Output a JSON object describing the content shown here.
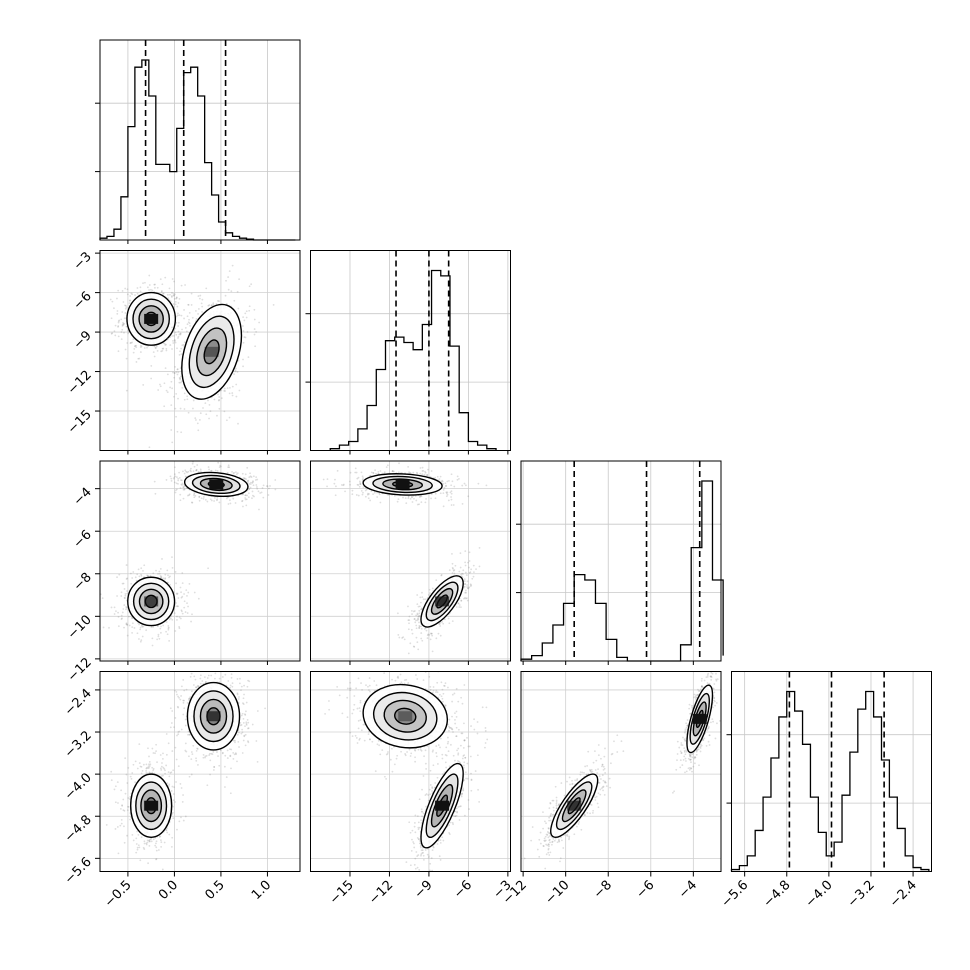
{
  "chart_data": {
    "type": "corner",
    "grid": true,
    "parameters": [
      {
        "axis_range": [
          -0.8,
          1.35
        ],
        "tick_labels": [
          "−0.5",
          "0.0",
          "0.5",
          "1.0"
        ],
        "tick_values": [
          -0.5,
          0.0,
          0.5,
          1.0
        ],
        "quantiles": [
          -0.31,
          0.1,
          0.55
        ],
        "histogram": {
          "bin_edges": [
            -0.8,
            -0.725,
            -0.65,
            -0.575,
            -0.5,
            -0.425,
            -0.35,
            -0.275,
            -0.2,
            -0.125,
            -0.05,
            0.025,
            0.1,
            0.175,
            0.25,
            0.325,
            0.4,
            0.475,
            0.55,
            0.625,
            0.7,
            0.775,
            0.85,
            0.925,
            1.0,
            1.075,
            1.15,
            1.225,
            1.3
          ],
          "counts": [
            0.01,
            0.02,
            0.06,
            0.24,
            0.63,
            0.96,
            1.0,
            0.8,
            0.42,
            0.42,
            0.38,
            0.62,
            0.93,
            0.96,
            0.8,
            0.43,
            0.25,
            0.1,
            0.04,
            0.02,
            0.01,
            0.005,
            0.0,
            0.0,
            0.0,
            0.0,
            0.0,
            0.0
          ]
        }
      },
      {
        "axis_range": [
          -18.0,
          -2.8
        ],
        "tick_labels": [
          "−15",
          "−12",
          "−9",
          "−6",
          "−3"
        ],
        "tick_values": [
          -15,
          -12,
          -9,
          -6,
          -3
        ],
        "quantiles": [
          -11.5,
          -9.0,
          -7.5
        ],
        "histogram": {
          "bin_edges": [
            -16.5,
            -15.8,
            -15.1,
            -14.4,
            -13.7,
            -13.0,
            -12.3,
            -11.6,
            -10.9,
            -10.2,
            -9.5,
            -8.8,
            -8.1,
            -7.4,
            -6.7,
            -6.0,
            -5.3,
            -4.6,
            -3.9
          ],
          "counts": [
            0.01,
            0.03,
            0.05,
            0.12,
            0.25,
            0.45,
            0.61,
            0.63,
            0.6,
            0.56,
            0.7,
            1.0,
            0.97,
            0.58,
            0.21,
            0.05,
            0.03,
            0.01
          ]
        }
      },
      {
        "axis_range": [
          -12.1,
          -2.7
        ],
        "tick_labels": [
          "−12",
          "−10",
          "−8",
          "−6",
          "−4"
        ],
        "tick_values": [
          -12,
          -10,
          -8,
          -6,
          -4
        ],
        "quantiles": [
          -9.6,
          -6.2,
          -3.7
        ],
        "histogram": {
          "bin_edges": [
            -12.1,
            -11.6,
            -11.1,
            -10.6,
            -10.1,
            -9.6,
            -9.1,
            -8.6,
            -8.1,
            -7.6,
            -7.1,
            -6.6,
            -6.1,
            -5.6,
            -5.1,
            -4.6,
            -4.1,
            -3.6,
            -3.1,
            -2.6
          ],
          "counts": [
            0.01,
            0.03,
            0.1,
            0.2,
            0.32,
            0.48,
            0.45,
            0.32,
            0.12,
            0.02,
            0.0,
            0.0,
            0.0,
            0.0,
            0.0,
            0.09,
            0.63,
            1.0,
            0.45,
            0.03
          ]
        }
      },
      {
        "axis_range": [
          -5.85,
          -2.05
        ],
        "tick_labels": [
          "−5.6",
          "−4.8",
          "−4.0",
          "−3.2",
          "−2.4"
        ],
        "tick_values": [
          -5.6,
          -4.8,
          -4.0,
          -3.2,
          -2.4
        ],
        "quantiles": [
          -4.75,
          -3.95,
          -2.95
        ],
        "histogram": {
          "bin_edges": [
            -5.85,
            -5.7,
            -5.55,
            -5.4,
            -5.25,
            -5.1,
            -4.95,
            -4.8,
            -4.65,
            -4.5,
            -4.35,
            -4.2,
            -4.05,
            -3.9,
            -3.75,
            -3.6,
            -3.45,
            -3.3,
            -3.15,
            -3.0,
            -2.85,
            -2.7,
            -2.55,
            -2.4,
            -2.25,
            -2.1
          ],
          "counts": [
            0.01,
            0.03,
            0.08,
            0.21,
            0.38,
            0.58,
            0.79,
            0.92,
            0.82,
            0.65,
            0.38,
            0.2,
            0.08,
            0.15,
            0.39,
            0.61,
            0.83,
            0.92,
            0.79,
            0.57,
            0.38,
            0.22,
            0.08,
            0.02,
            0.01
          ]
        }
      }
    ],
    "pair_plots": [
      {
        "x_param": 0,
        "y_param": 1,
        "modes": [
          {
            "center": [
              -0.25,
              -8.0
            ],
            "sd": [
              0.13,
              1.0
            ],
            "rho": 0.0,
            "darkness": 1.0
          },
          {
            "center": [
              0.4,
              -10.5
            ],
            "sd": [
              0.16,
              1.8
            ],
            "rho": 0.35,
            "darkness": 0.45
          }
        ]
      },
      {
        "x_param": 0,
        "y_param": 2,
        "modes": [
          {
            "center": [
              0.45,
              -3.8
            ],
            "sd": [
              0.17,
              0.28
            ],
            "rho": -0.2,
            "darkness": 1.0
          },
          {
            "center": [
              -0.25,
              -9.3
            ],
            "sd": [
              0.13,
              0.55
            ],
            "rho": 0.0,
            "darkness": 0.6
          }
        ]
      },
      {
        "x_param": 0,
        "y_param": 3,
        "modes": [
          {
            "center": [
              -0.25,
              -4.6
            ],
            "sd": [
              0.11,
              0.3
            ],
            "rho": 0.0,
            "darkness": 1.0
          },
          {
            "center": [
              0.42,
              -2.9
            ],
            "sd": [
              0.14,
              0.32
            ],
            "rho": 0.0,
            "darkness": 0.7
          }
        ]
      },
      {
        "x_param": 1,
        "y_param": 2,
        "modes": [
          {
            "center": [
              -11.0,
              -3.8
            ],
            "sd": [
              1.5,
              0.25
            ],
            "rho": -0.15,
            "darkness": 1.0
          },
          {
            "center": [
              -8.0,
              -9.3
            ],
            "sd": [
              0.8,
              0.6
            ],
            "rho": 0.7,
            "darkness": 0.75
          }
        ]
      },
      {
        "x_param": 1,
        "y_param": 3,
        "modes": [
          {
            "center": [
              -10.8,
              -2.9
            ],
            "sd": [
              1.6,
              0.3
            ],
            "rho": -0.1,
            "darkness": 0.4
          },
          {
            "center": [
              -8.0,
              -4.6
            ],
            "sd": [
              0.8,
              0.4
            ],
            "rho": 0.75,
            "darkness": 1.0
          }
        ]
      },
      {
        "x_param": 2,
        "y_param": 3,
        "modes": [
          {
            "center": [
              -9.6,
              -4.6
            ],
            "sd": [
              0.55,
              0.3
            ],
            "rho": 0.8,
            "darkness": 0.7
          },
          {
            "center": [
              -3.7,
              -2.95
            ],
            "sd": [
              0.3,
              0.32
            ],
            "rho": 0.7,
            "darkness": 1.0
          }
        ]
      }
    ]
  }
}
